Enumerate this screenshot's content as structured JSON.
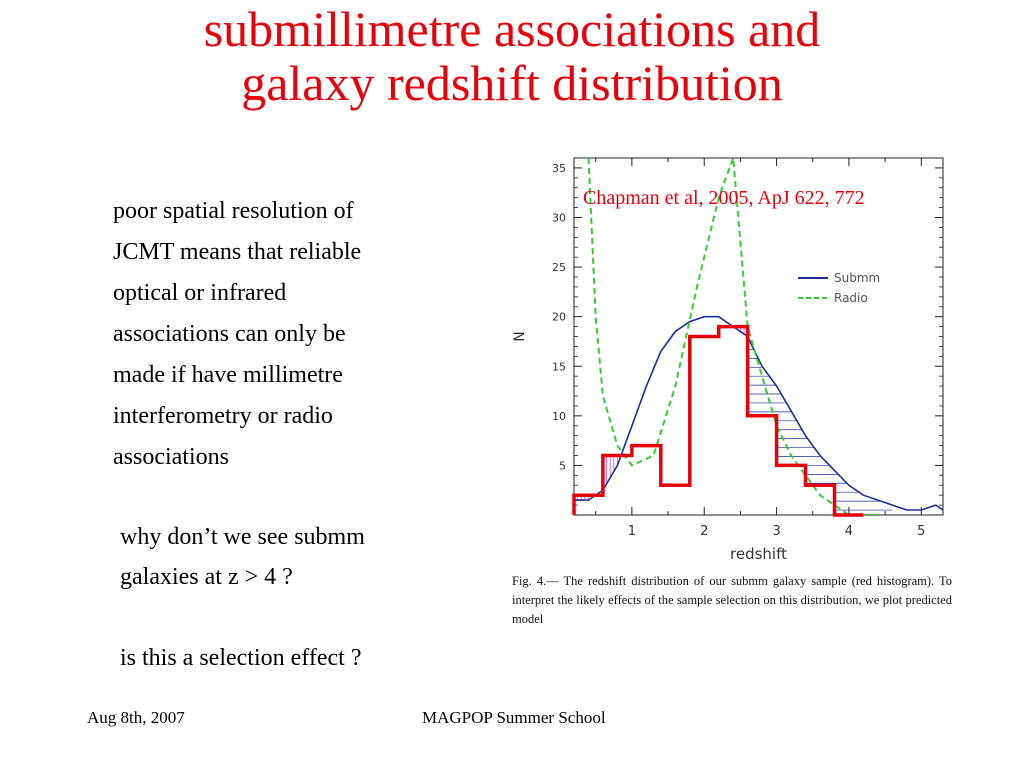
{
  "slide": {
    "title_line1": "submillimetre associations and",
    "title_line2": "galaxy redshift distribution",
    "body_lines": [
      "poor spatial resolution of",
      "JCMT means that reliable",
      "optical or infrared",
      "associations can only be",
      "made if have millimetre",
      "interferometry  or radio",
      "associations"
    ],
    "question1_line1": "why don’t we see submm",
    "question1_line2": "galaxies at z > 4 ?",
    "question2": "is this a selection effect ?",
    "citation": "Chapman et al, 2005, ApJ 622, 772",
    "footer_date": "Aug 8th, 2007",
    "footer_event": "MAGPOP Summer School",
    "fig_caption": "Fig. 4.— The redshift distribution of our submm galaxy sample (red histogram). To interpret the likely effects of the sample selection on this distribution, we plot predicted model"
  },
  "colors": {
    "title": "#e8000b",
    "histogram": "#e8000b",
    "submm_curve": "#1a2f9c",
    "radio_curve": "#33cc33",
    "hatch_vertical": "#d14fd1",
    "hatch_horizontal": "#1a2f9c"
  },
  "chart_data": {
    "type": "line",
    "xlabel": "redshift",
    "ylabel": "N",
    "xlim": [
      0.2,
      5.3
    ],
    "ylim": [
      0,
      36
    ],
    "xticks": [
      1,
      2,
      3,
      4,
      5
    ],
    "yticks": [
      5,
      10,
      15,
      20,
      25,
      30,
      35
    ],
    "histogram": {
      "name": "red histogram",
      "bins": [
        {
          "x0": 0.2,
          "x1": 0.6,
          "count": 2
        },
        {
          "x0": 0.6,
          "x1": 1.0,
          "count": 6
        },
        {
          "x0": 1.0,
          "x1": 1.4,
          "count": 7
        },
        {
          "x0": 1.4,
          "x1": 1.8,
          "count": 3
        },
        {
          "x0": 1.8,
          "x1": 2.2,
          "count": 18
        },
        {
          "x0": 2.2,
          "x1": 2.6,
          "count": 19
        },
        {
          "x0": 2.6,
          "x1": 3.0,
          "count": 10
        },
        {
          "x0": 3.0,
          "x1": 3.4,
          "count": 5
        },
        {
          "x0": 3.4,
          "x1": 3.8,
          "count": 3
        },
        {
          "x0": 3.8,
          "x1": 4.2,
          "count": 0
        }
      ]
    },
    "series": [
      {
        "name": "Submm",
        "style": "solid",
        "x": [
          0.2,
          0.4,
          0.6,
          0.8,
          1.0,
          1.2,
          1.4,
          1.6,
          1.8,
          2.0,
          2.2,
          2.4,
          2.6,
          2.8,
          3.0,
          3.2,
          3.4,
          3.6,
          3.8,
          4.0,
          4.2,
          4.4,
          4.6,
          4.8,
          5.0,
          5.2,
          5.3
        ],
        "y": [
          1.5,
          1.5,
          2.5,
          5,
          9,
          13,
          16.5,
          18.5,
          19.5,
          20,
          20,
          19,
          18,
          15,
          13,
          10.5,
          8,
          6,
          4.5,
          3,
          2,
          1.5,
          1,
          0.5,
          0.5,
          1,
          0.5
        ]
      },
      {
        "name": "Radio",
        "style": "dashed",
        "x": [
          0.4,
          0.45,
          0.5,
          0.6,
          0.8,
          1.0,
          1.3,
          1.6,
          1.9,
          2.2,
          2.4,
          2.6,
          2.8,
          3.0,
          3.2,
          3.4,
          3.6,
          3.8,
          4.0,
          4.4
        ],
        "y": [
          36,
          28,
          20,
          12,
          7,
          5,
          6,
          13,
          23,
          32,
          36,
          19,
          14,
          9,
          6,
          4,
          2,
          1,
          0,
          0
        ]
      }
    ],
    "legend": {
      "position": "top-right",
      "entries": [
        "Submm",
        "Radio"
      ]
    }
  }
}
